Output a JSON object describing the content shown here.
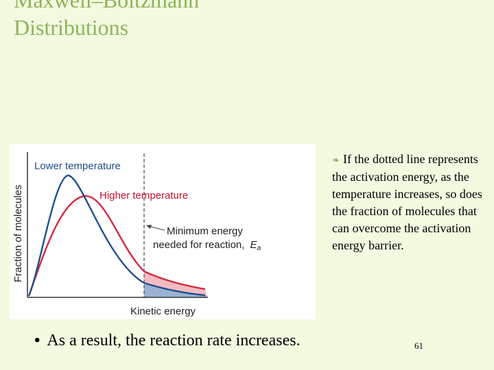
{
  "slide": {
    "title_line1": "Maxwell–Boltzmann",
    "title_line2": "Distributions",
    "right_text": "If the dotted line represents the activation energy, as the temperature increases, so does the fraction of molecules that can overcome the activation energy barrier.",
    "bottom_bullet": "As a result, the reaction rate increases.",
    "page_number": "61"
  },
  "figure": {
    "y_axis_label": "Fraction of molecules",
    "x_axis_label": "Kinetic energy",
    "lower_temp_label": "Lower temperature",
    "higher_temp_label": "Higher temperature",
    "min_energy_line1": "Minimum energy",
    "min_energy_line2": "needed for reaction,",
    "ea_symbol": "E",
    "ea_subscript": "a",
    "colors": {
      "lower": "#1f4e8c",
      "higher": "#d6283f",
      "lower_label": "#1f4e8c",
      "higher_label": "#c8102e"
    }
  }
}
